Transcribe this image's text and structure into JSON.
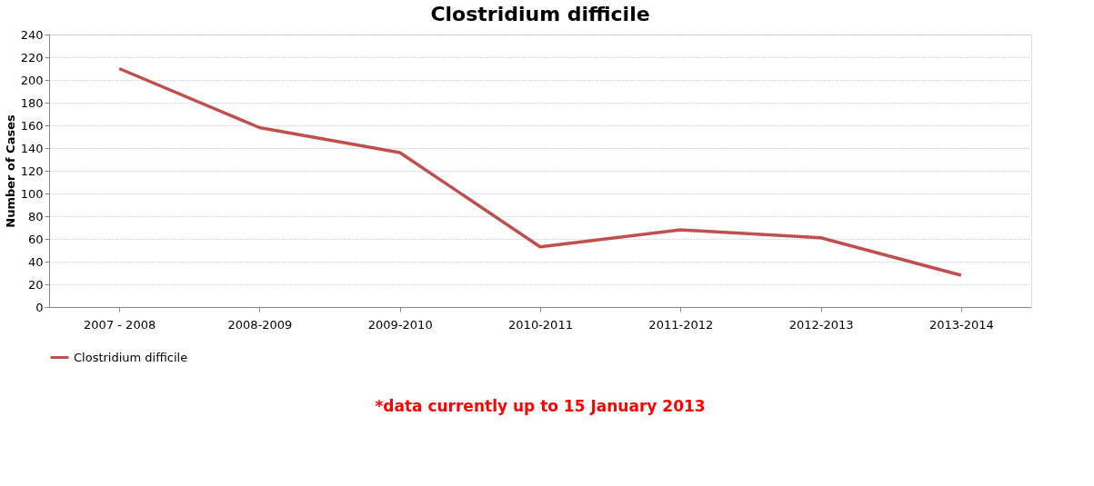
{
  "chart_data": {
    "type": "line",
    "title": "Clostridium difficile",
    "ylabel": "Number of Cases",
    "categories": [
      "2007 - 2008",
      "2008-2009",
      "2009-2010",
      "2010-2011",
      "2011-2012",
      "2012-2013",
      "2013-2014"
    ],
    "series": [
      {
        "name": "Clostridium difficile",
        "color": "#c0504d",
        "values": [
          210,
          158,
          136,
          53,
          68,
          61,
          28
        ]
      }
    ],
    "ylim": [
      0,
      240
    ],
    "yticks": [
      0,
      20,
      40,
      60,
      80,
      100,
      120,
      140,
      160,
      180,
      200,
      220,
      240
    ],
    "grid": "y",
    "legend": "bottom",
    "marker": "none",
    "line_style": "solid",
    "annotations": [
      "*data currently up to 15 January 2013"
    ]
  }
}
